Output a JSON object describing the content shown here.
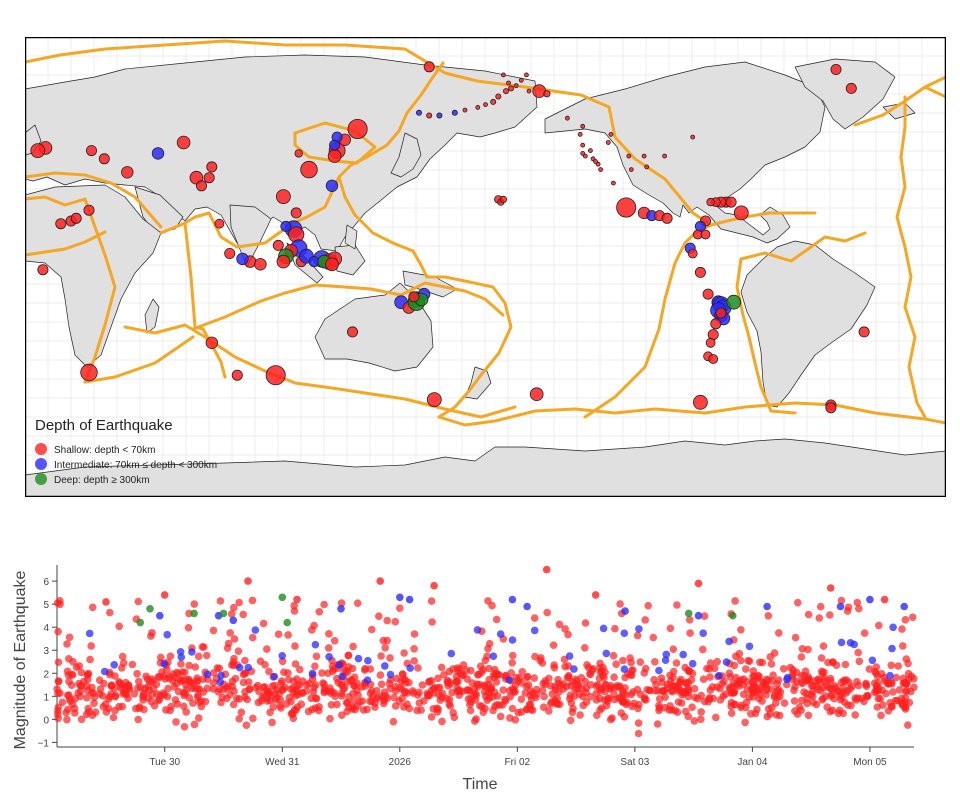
{
  "map": {
    "legend": {
      "title": "Depth of Earthquake",
      "items": [
        {
          "label": "Shallow: depth < 70km",
          "color": "#ff2020"
        },
        {
          "label": "Intermediate: 70km ≤ depth < 300km",
          "color": "#2a2aff"
        },
        {
          "label": "Deep: depth ≥ 300km",
          "color": "#1e8c1e"
        }
      ]
    },
    "colors": {
      "land": "#e0e0e0",
      "ocean": "#ffffff",
      "plate_boundary": "#f5a623",
      "graticule": "#e8e8e8"
    },
    "projection": "equirectangular, centred near 180°",
    "events": [
      {
        "lon": 150,
        "lat": 46,
        "depth": "shallow",
        "mag": 5.0
      },
      {
        "lon": 142,
        "lat": 38,
        "depth": "shallow",
        "mag": 4.5
      },
      {
        "lon": 141,
        "lat": 36,
        "depth": "shallow",
        "mag": 4.0
      },
      {
        "lon": 145,
        "lat": 42,
        "depth": "shallow",
        "mag": 3.8
      },
      {
        "lon": 142,
        "lat": 43,
        "depth": "intermediate",
        "mag": 3.6
      },
      {
        "lon": 141,
        "lat": 40,
        "depth": "intermediate",
        "mag": 3.6
      },
      {
        "lon": 131,
        "lat": 31,
        "depth": "shallow",
        "mag": 4.6
      },
      {
        "lon": 127,
        "lat": 37,
        "depth": "shallow",
        "mag": 3.2
      },
      {
        "lon": 140,
        "lat": 25,
        "depth": "intermediate",
        "mag": 3.8
      },
      {
        "lon": 121,
        "lat": 21,
        "depth": "shallow",
        "mag": 4.2
      },
      {
        "lon": 126,
        "lat": 15,
        "depth": "shallow",
        "mag": 3.6
      },
      {
        "lon": 125,
        "lat": 9,
        "depth": "intermediate",
        "mag": 4.6
      },
      {
        "lon": 126,
        "lat": 7,
        "depth": "shallow",
        "mag": 4.4
      },
      {
        "lon": 122,
        "lat": 10,
        "depth": "intermediate",
        "mag": 3.6
      },
      {
        "lon": 127,
        "lat": 2,
        "depth": "intermediate",
        "mag": 4.6
      },
      {
        "lon": 124,
        "lat": 1,
        "depth": "shallow",
        "mag": 4.0
      },
      {
        "lon": 122,
        "lat": -1,
        "depth": "deep",
        "mag": 4.3
      },
      {
        "lon": 121,
        "lat": -3,
        "depth": "shallow",
        "mag": 4.0
      },
      {
        "lon": 119,
        "lat": 3,
        "depth": "shallow",
        "mag": 3.6
      },
      {
        "lon": 128,
        "lat": -3,
        "depth": "shallow",
        "mag": 3.6
      },
      {
        "lon": 130,
        "lat": -1,
        "depth": "intermediate",
        "mag": 4.2
      },
      {
        "lon": 136,
        "lat": -2,
        "depth": "intermediate",
        "mag": 4.6
      },
      {
        "lon": 139,
        "lat": -3,
        "depth": "shallow",
        "mag": 4.5
      },
      {
        "lon": 141,
        "lat": -2,
        "depth": "shallow",
        "mag": 4.2
      },
      {
        "lon": 133,
        "lat": -3,
        "depth": "intermediate",
        "mag": 3.6
      },
      {
        "lon": 137,
        "lat": -3,
        "depth": "deep",
        "mag": 4.0
      },
      {
        "lon": 140,
        "lat": -4,
        "depth": "shallow",
        "mag": 4.0
      },
      {
        "lon": 108,
        "lat": -3,
        "depth": "shallow",
        "mag": 3.8
      },
      {
        "lon": 112,
        "lat": -4,
        "depth": "shallow",
        "mag": 3.8
      },
      {
        "lon": 105,
        "lat": -2,
        "depth": "intermediate",
        "mag": 3.8
      },
      {
        "lon": 100,
        "lat": 0,
        "depth": "shallow",
        "mag": 3.6
      },
      {
        "lon": 96,
        "lat": 11,
        "depth": "shallow",
        "mag": 3.4
      },
      {
        "lon": 92,
        "lat": 28,
        "depth": "shallow",
        "mag": 3.6
      },
      {
        "lon": 87,
        "lat": 28,
        "depth": "shallow",
        "mag": 4.0
      },
      {
        "lon": 89,
        "lat": 25,
        "depth": "shallow",
        "mag": 3.6
      },
      {
        "lon": 93,
        "lat": 32,
        "depth": "shallow",
        "mag": 3.6
      },
      {
        "lon": 82,
        "lat": 41,
        "depth": "shallow",
        "mag": 4.0
      },
      {
        "lon": 72,
        "lat": 37,
        "depth": "intermediate",
        "mag": 3.8
      },
      {
        "lon": 60,
        "lat": 30,
        "depth": "shallow",
        "mag": 3.8
      },
      {
        "lon": 51,
        "lat": 35,
        "depth": "shallow",
        "mag": 3.6
      },
      {
        "lon": 46,
        "lat": 38,
        "depth": "shallow",
        "mag": 3.6
      },
      {
        "lon": 28,
        "lat": 39,
        "depth": "shallow",
        "mag": 4.0
      },
      {
        "lon": 25,
        "lat": 38,
        "depth": "shallow",
        "mag": 4.2
      },
      {
        "lon": 45,
        "lat": 16,
        "depth": "shallow",
        "mag": 3.6
      },
      {
        "lon": 38,
        "lat": 12,
        "depth": "shallow",
        "mag": 3.6
      },
      {
        "lon": 40,
        "lat": 13,
        "depth": "shallow",
        "mag": 3.6
      },
      {
        "lon": 34,
        "lat": 11,
        "depth": "shallow",
        "mag": 3.6
      },
      {
        "lon": 27,
        "lat": -6,
        "depth": "shallow",
        "mag": 3.6
      },
      {
        "lon": 45,
        "lat": -44,
        "depth": "shallow",
        "mag": 4.6
      },
      {
        "lon": 93,
        "lat": -33,
        "depth": "shallow",
        "mag": 3.8
      },
      {
        "lon": 103,
        "lat": -45,
        "depth": "shallow",
        "mag": 3.6
      },
      {
        "lon": 118,
        "lat": -45,
        "depth": "shallow",
        "mag": 5.0
      },
      {
        "lon": 148,
        "lat": -29,
        "depth": "shallow",
        "mag": 3.6
      },
      {
        "lon": 167,
        "lat": -18,
        "depth": "intermediate",
        "mag": 4.0
      },
      {
        "lon": 170,
        "lat": -20,
        "depth": "shallow",
        "mag": 3.8
      },
      {
        "lon": 173,
        "lat": -17,
        "depth": "deep",
        "mag": 4.4
      },
      {
        "lon": 173,
        "lat": -18,
        "depth": "deep",
        "mag": 4.6
      },
      {
        "lon": 176,
        "lat": -15,
        "depth": "intermediate",
        "mag": 3.8
      },
      {
        "lon": 175,
        "lat": -17,
        "depth": "deep",
        "mag": 4.0
      },
      {
        "lon": 172,
        "lat": -16,
        "depth": "shallow",
        "mag": 3.6
      },
      {
        "lon": 180,
        "lat": -54,
        "depth": "shallow",
        "mag": 4.2
      },
      {
        "lon": -76,
        "lat": -55,
        "depth": "shallow",
        "mag": 4.2
      },
      {
        "lon": -140,
        "lat": -52,
        "depth": "shallow",
        "mag": 4.0
      },
      {
        "lon": -12,
        "lat": -29,
        "depth": "shallow",
        "mag": 3.6
      },
      {
        "lon": -25,
        "lat": -56,
        "depth": "shallow",
        "mag": 3.6
      },
      {
        "lon": -25,
        "lat": -57,
        "depth": "shallow",
        "mag": 3.6
      },
      {
        "lon": -23,
        "lat": 68,
        "depth": "shallow",
        "mag": 3.6
      },
      {
        "lon": -17,
        "lat": 61,
        "depth": "shallow",
        "mag": 3.6
      },
      {
        "lon": -155,
        "lat": 20,
        "depth": "shallow",
        "mag": 3.2
      },
      {
        "lon": -154,
        "lat": 19,
        "depth": "shallow",
        "mag": 3.0
      },
      {
        "lon": -153,
        "lat": 20,
        "depth": "shallow",
        "mag": 3.0
      },
      {
        "lon": -105,
        "lat": 17,
        "depth": "shallow",
        "mag": 5.0
      },
      {
        "lon": -98,
        "lat": 15,
        "depth": "shallow",
        "mag": 3.8
      },
      {
        "lon": -95,
        "lat": 14,
        "depth": "intermediate",
        "mag": 3.6
      },
      {
        "lon": -92,
        "lat": 14,
        "depth": "shallow",
        "mag": 3.6
      },
      {
        "lon": -89,
        "lat": 13,
        "depth": "shallow",
        "mag": 3.6
      },
      {
        "lon": -66,
        "lat": 19,
        "depth": "shallow",
        "mag": 3.6
      },
      {
        "lon": -68,
        "lat": 19,
        "depth": "shallow",
        "mag": 3.6
      },
      {
        "lon": -64,
        "lat": 19,
        "depth": "shallow",
        "mag": 3.6
      },
      {
        "lon": -70,
        "lat": 19,
        "depth": "shallow",
        "mag": 3.4
      },
      {
        "lon": -72,
        "lat": 19,
        "depth": "shallow",
        "mag": 3.2
      },
      {
        "lon": -60,
        "lat": 15,
        "depth": "shallow",
        "mag": 4.2
      },
      {
        "lon": -74,
        "lat": 12,
        "depth": "shallow",
        "mag": 3.6
      },
      {
        "lon": -76,
        "lat": 10,
        "depth": "intermediate",
        "mag": 3.6
      },
      {
        "lon": -77,
        "lat": 7,
        "depth": "shallow",
        "mag": 3.4
      },
      {
        "lon": -74,
        "lat": 7,
        "depth": "shallow",
        "mag": 3.4
      },
      {
        "lon": -80,
        "lat": 2,
        "depth": "intermediate",
        "mag": 3.6
      },
      {
        "lon": -79,
        "lat": 0,
        "depth": "shallow",
        "mag": 3.4
      },
      {
        "lon": -76,
        "lat": -7,
        "depth": "shallow",
        "mag": 3.6
      },
      {
        "lon": -73,
        "lat": -15,
        "depth": "shallow",
        "mag": 3.6
      },
      {
        "lon": -69,
        "lat": -18,
        "depth": "intermediate",
        "mag": 4.0
      },
      {
        "lon": -68,
        "lat": -19,
        "depth": "intermediate",
        "mag": 4.6
      },
      {
        "lon": -67,
        "lat": -20,
        "depth": "intermediate",
        "mag": 4.4
      },
      {
        "lon": -69,
        "lat": -21,
        "depth": "intermediate",
        "mag": 4.4
      },
      {
        "lon": -68,
        "lat": -23,
        "depth": "intermediate",
        "mag": 4.0
      },
      {
        "lon": -67,
        "lat": -24,
        "depth": "intermediate",
        "mag": 4.0
      },
      {
        "lon": -68,
        "lat": -22,
        "depth": "shallow",
        "mag": 3.6
      },
      {
        "lon": -63,
        "lat": -18,
        "depth": "deep",
        "mag": 4.2
      },
      {
        "lon": -70,
        "lat": -26,
        "depth": "shallow",
        "mag": 3.6
      },
      {
        "lon": -71,
        "lat": -30,
        "depth": "shallow",
        "mag": 3.6
      },
      {
        "lon": -72,
        "lat": -33,
        "depth": "shallow",
        "mag": 3.4
      },
      {
        "lon": -73,
        "lat": -38,
        "depth": "shallow",
        "mag": 3.4
      },
      {
        "lon": -71,
        "lat": -39,
        "depth": "shallow",
        "mag": 3.4
      },
      {
        "lon": -122,
        "lat": 37,
        "depth": "shallow",
        "mag": 2.6
      },
      {
        "lon": -121,
        "lat": 36,
        "depth": "shallow",
        "mag": 2.4
      },
      {
        "lon": -117,
        "lat": 34,
        "depth": "shallow",
        "mag": 2.6
      },
      {
        "lon": -116,
        "lat": 33,
        "depth": "shallow",
        "mag": 2.4
      },
      {
        "lon": -118,
        "lat": 35,
        "depth": "shallow",
        "mag": 2.4
      },
      {
        "lon": -119,
        "lat": 38,
        "depth": "shallow",
        "mag": 2.4
      },
      {
        "lon": -122,
        "lat": 40,
        "depth": "shallow",
        "mag": 2.4
      },
      {
        "lon": -123,
        "lat": 44,
        "depth": "shallow",
        "mag": 2.4
      },
      {
        "lon": -122,
        "lat": 47,
        "depth": "shallow",
        "mag": 2.6
      },
      {
        "lon": -111,
        "lat": 44,
        "depth": "shallow",
        "mag": 2.4
      },
      {
        "lon": -112,
        "lat": 41,
        "depth": "shallow",
        "mag": 2.4
      },
      {
        "lon": -104,
        "lat": 36,
        "depth": "shallow",
        "mag": 2.4
      },
      {
        "lon": -98,
        "lat": 36,
        "depth": "shallow",
        "mag": 2.4
      },
      {
        "lon": -97,
        "lat": 32,
        "depth": "shallow",
        "mag": 2.4
      },
      {
        "lon": -103,
        "lat": 31,
        "depth": "shallow",
        "mag": 2.4
      },
      {
        "lon": -90,
        "lat": 36,
        "depth": "shallow",
        "mag": 2.4
      },
      {
        "lon": -79,
        "lat": 43,
        "depth": "shallow",
        "mag": 2.4
      },
      {
        "lon": -150,
        "lat": 61,
        "depth": "shallow",
        "mag": 2.8
      },
      {
        "lon": -152,
        "lat": 60,
        "depth": "shallow",
        "mag": 2.8
      },
      {
        "lon": -148,
        "lat": 62,
        "depth": "shallow",
        "mag": 2.6
      },
      {
        "lon": -146,
        "lat": 64,
        "depth": "shallow",
        "mag": 2.6
      },
      {
        "lon": -151,
        "lat": 63,
        "depth": "shallow",
        "mag": 2.6
      },
      {
        "lon": -155,
        "lat": 58,
        "depth": "shallow",
        "mag": 2.8
      },
      {
        "lon": -157,
        "lat": 56,
        "depth": "shallow",
        "mag": 2.8
      },
      {
        "lon": -160,
        "lat": 55,
        "depth": "shallow",
        "mag": 2.6
      },
      {
        "lon": -163,
        "lat": 54,
        "depth": "shallow",
        "mag": 2.6
      },
      {
        "lon": -168,
        "lat": 53,
        "depth": "shallow",
        "mag": 2.6
      },
      {
        "lon": -172,
        "lat": 52,
        "depth": "intermediate",
        "mag": 2.8
      },
      {
        "lon": -178,
        "lat": 51,
        "depth": "intermediate",
        "mag": 2.8
      },
      {
        "lon": 178,
        "lat": 51,
        "depth": "shallow",
        "mag": 2.8
      },
      {
        "lon": 174,
        "lat": 52,
        "depth": "intermediate",
        "mag": 2.8
      },
      {
        "lon": -139,
        "lat": 60,
        "depth": "shallow",
        "mag": 4.0
      },
      {
        "lon": -136,
        "lat": 59,
        "depth": "shallow",
        "mag": 3.0
      },
      {
        "lon": -143,
        "lat": 60,
        "depth": "shallow",
        "mag": 2.6
      },
      {
        "lon": -153,
        "lat": 66,
        "depth": "shallow",
        "mag": 2.6
      },
      {
        "lon": -144,
        "lat": 66,
        "depth": "shallow",
        "mag": 2.6
      },
      {
        "lon": -128,
        "lat": 50,
        "depth": "shallow",
        "mag": 2.6
      },
      {
        "lon": -115,
        "lat": 31,
        "depth": "shallow",
        "mag": 2.6
      },
      {
        "lon": -110,
        "lat": 26,
        "depth": "shallow",
        "mag": 2.6
      },
      {
        "lon": 178,
        "lat": 69,
        "depth": "shallow",
        "mag": 3.6
      }
    ]
  },
  "magnitude_chart": {
    "ylabel": "Magnitude of Earthquake",
    "xlabel": "Time",
    "yticks": [
      "−1",
      "0",
      "1",
      "2",
      "3",
      "4",
      "5",
      "6"
    ],
    "xticks": [
      "Tue 30",
      "Wed 31",
      "2026",
      "Fri 02",
      "Sat 03",
      "Jan 04",
      "Mon 05"
    ]
  },
  "chart_data": {
    "type": "scatter",
    "title": "",
    "xlabel": "Time",
    "ylabel": "Magnitude of Earthquake",
    "x_ticks": [
      "Tue 30",
      "Wed 31",
      "2026",
      "Fri 02",
      "Sat 03",
      "Jan 04",
      "Mon 05"
    ],
    "x_range": [
      "2025-12-29T02:00",
      "2026-01-05T09:00"
    ],
    "ylim": [
      -1.2,
      6.7
    ],
    "series": [
      {
        "name": "Shallow: depth < 70km",
        "color": "#ff2020",
        "highlights": [
          {
            "t": "2026-01-02T06:00",
            "mag": 6.5
          },
          {
            "t": "2025-12-30T17:00",
            "mag": 6.0
          },
          {
            "t": "2025-12-31T20:00",
            "mag": 6.0
          },
          {
            "t": "2026-01-03T13:00",
            "mag": 5.9
          },
          {
            "t": "2026-01-01T07:00",
            "mag": 5.8
          },
          {
            "t": "2026-01-04T16:00",
            "mag": 5.7
          },
          {
            "t": "2025-12-29T12:00",
            "mag": 5.1
          },
          {
            "t": "2025-12-30T00:00",
            "mag": 5.4
          },
          {
            "t": "2025-12-31T03:00",
            "mag": 5.2
          },
          {
            "t": "2026-01-02T16:00",
            "mag": 5.4
          },
          {
            "t": "2026-01-05T03:00",
            "mag": 5.2
          }
        ]
      },
      {
        "name": "Intermediate: 70km ≤ depth < 300km",
        "color": "#2a2aff",
        "values": [
          {
            "t": "2025-12-29T23:00",
            "mag": 4.5
          },
          {
            "t": "2025-12-30T11:00",
            "mag": 4.5
          },
          {
            "t": "2025-12-30T14:00",
            "mag": 4.3
          },
          {
            "t": "2025-12-31T12:00",
            "mag": 4.8
          },
          {
            "t": "2026-01-01T00:00",
            "mag": 5.3
          },
          {
            "t": "2026-01-01T02:00",
            "mag": 5.2
          },
          {
            "t": "2026-01-01T23:00",
            "mag": 5.2
          },
          {
            "t": "2026-01-02T02:00",
            "mag": 4.9
          },
          {
            "t": "2026-01-02T22:00",
            "mag": 4.7
          },
          {
            "t": "2026-01-03T13:00",
            "mag": 4.5
          },
          {
            "t": "2026-01-04T03:00",
            "mag": 4.9
          },
          {
            "t": "2026-01-04T18:00",
            "mag": 4.9
          },
          {
            "t": "2026-01-05T07:00",
            "mag": 4.9
          },
          {
            "t": "2026-01-05T00:00",
            "mag": 5.2
          }
        ]
      },
      {
        "name": "Deep: depth ≥ 300km",
        "color": "#1e8c1e",
        "values": [
          {
            "t": "2025-12-29T21:00",
            "mag": 4.8
          },
          {
            "t": "2025-12-29T19:00",
            "mag": 4.2
          },
          {
            "t": "2025-12-30T06:00",
            "mag": 4.6
          },
          {
            "t": "2025-12-30T12:00",
            "mag": 4.6
          },
          {
            "t": "2025-12-31T00:00",
            "mag": 5.3
          },
          {
            "t": "2025-12-31T01:00",
            "mag": 4.2
          },
          {
            "t": "2026-01-03T11:00",
            "mag": 4.6
          },
          {
            "t": "2026-01-03T20:00",
            "mag": 4.5
          }
        ]
      }
    ]
  }
}
